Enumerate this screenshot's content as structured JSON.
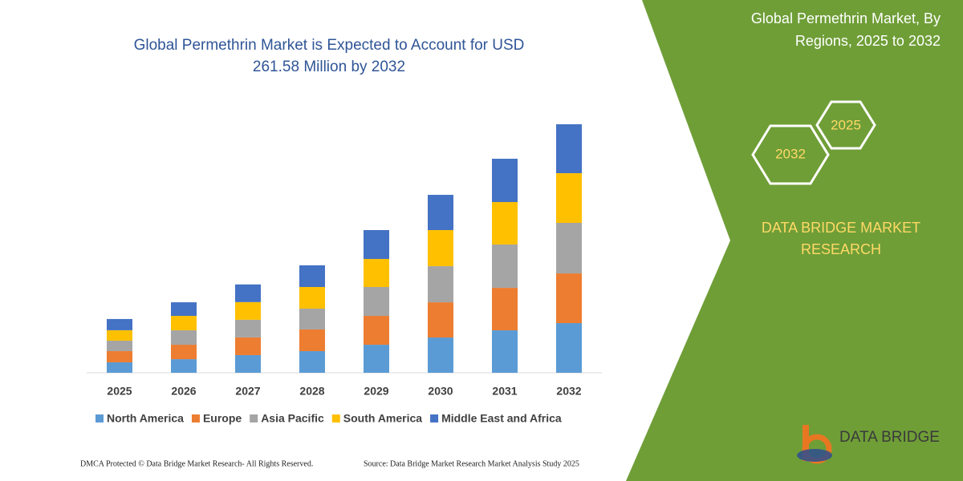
{
  "chart_data": {
    "type": "stacked-bar",
    "title": "Global Permethrin Market is Expected to Account for USD 261.58 Million by 2032",
    "categories": [
      "2025",
      "2026",
      "2027",
      "2028",
      "2029",
      "2030",
      "2031",
      "2032"
    ],
    "series": [
      {
        "name": "North America",
        "color": "#5b9bd5",
        "values": [
          11.0,
          14.3,
          18.6,
          22.8,
          29.5,
          37.1,
          44.7,
          52.3
        ]
      },
      {
        "name": "Europe",
        "color": "#ed7d31",
        "values": [
          11.8,
          15.2,
          18.6,
          22.8,
          30.4,
          37.1,
          44.7,
          52.3
        ]
      },
      {
        "name": "Asia Pacific",
        "color": "#a5a5a5",
        "values": [
          11.0,
          15.2,
          18.6,
          21.9,
          30.4,
          38.0,
          45.6,
          53.2
        ]
      },
      {
        "name": "South America",
        "color": "#ffc000",
        "values": [
          11.0,
          15.2,
          18.6,
          22.8,
          29.5,
          38.0,
          44.7,
          52.3
        ]
      },
      {
        "name": "Middle East and Africa",
        "color": "#4472c4",
        "values": [
          11.8,
          14.3,
          18.6,
          22.8,
          30.4,
          37.1,
          45.6,
          51.5
        ]
      }
    ]
  },
  "panel": {
    "title_line1": "Global Permethrin Market, By",
    "title_line2": "Regions, 2025 to 2032",
    "hex_front": "2032",
    "hex_back": "2025",
    "brand_line1": "DATA BRIDGE MARKET",
    "brand_line2": "RESEARCH",
    "logo": "DATA BRIDGE"
  },
  "footer": {
    "left": "DMCA Protected © Data Bridge Market Research-  All Rights Reserved.",
    "right": "Source: Data Bridge Market Research  Market Analysis Study 2025"
  }
}
